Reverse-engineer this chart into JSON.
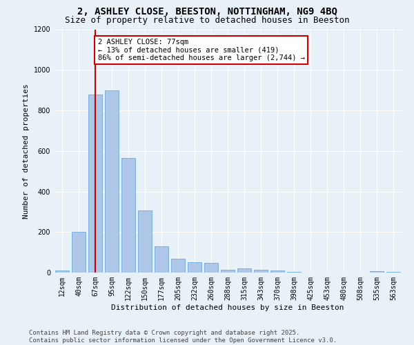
{
  "title": "2, ASHLEY CLOSE, BEESTON, NOTTINGHAM, NG9 4BQ",
  "subtitle": "Size of property relative to detached houses in Beeston",
  "xlabel": "Distribution of detached houses by size in Beeston",
  "ylabel": "Number of detached properties",
  "footer": "Contains HM Land Registry data © Crown copyright and database right 2025.\nContains public sector information licensed under the Open Government Licence v3.0.",
  "categories": [
    "12sqm",
    "40sqm",
    "67sqm",
    "95sqm",
    "122sqm",
    "150sqm",
    "177sqm",
    "205sqm",
    "232sqm",
    "260sqm",
    "288sqm",
    "315sqm",
    "343sqm",
    "370sqm",
    "398sqm",
    "425sqm",
    "453sqm",
    "480sqm",
    "508sqm",
    "535sqm",
    "563sqm"
  ],
  "values": [
    10,
    200,
    880,
    900,
    565,
    305,
    130,
    68,
    50,
    48,
    15,
    20,
    15,
    10,
    3,
    0,
    0,
    0,
    0,
    8,
    3
  ],
  "bar_color": "#aec6e8",
  "bar_edge_color": "#5a9fd4",
  "vline_x_index": 2,
  "vline_color": "#cc0000",
  "annotation_text": "2 ASHLEY CLOSE: 77sqm\n← 13% of detached houses are smaller (419)\n86% of semi-detached houses are larger (2,744) →",
  "annotation_box_color": "#cc0000",
  "ylim": [
    0,
    1200
  ],
  "yticks": [
    0,
    200,
    400,
    600,
    800,
    1000,
    1200
  ],
  "bg_color": "#e8f0f8",
  "plot_bg_color": "#e8f0f8",
  "title_fontsize": 10,
  "subtitle_fontsize": 9,
  "axis_label_fontsize": 8,
  "tick_fontsize": 7,
  "annotation_fontsize": 7.5,
  "footer_fontsize": 6.5
}
